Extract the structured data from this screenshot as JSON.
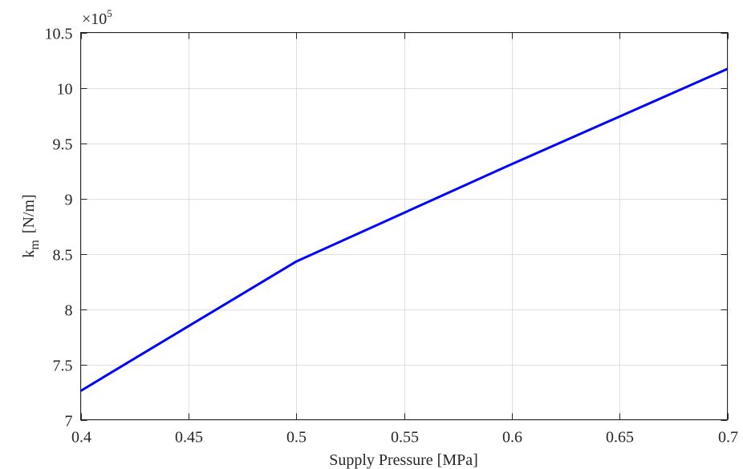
{
  "chart_data": {
    "type": "line",
    "xlabel": "Supply Pressure [MPa]",
    "ylabel_main": "k",
    "ylabel_sub": "m",
    "ylabel_unit": "[N/m]",
    "y_exponent_base": "×10",
    "y_exponent_power": "5",
    "xlim": [
      0.4,
      0.7
    ],
    "ylim": [
      7,
      10.5
    ],
    "x_ticks": [
      0.4,
      0.45,
      0.5,
      0.55,
      0.6,
      0.65,
      0.7
    ],
    "x_tick_labels": [
      "0.4",
      "0.45",
      "0.5",
      "0.55",
      "0.6",
      "0.65",
      "0.7"
    ],
    "y_ticks": [
      7,
      7.5,
      8,
      8.5,
      9,
      9.5,
      10,
      10.5
    ],
    "y_tick_labels": [
      "7",
      "7.5",
      "8",
      "8.5",
      "9",
      "9.5",
      "10",
      "10.5"
    ],
    "grid": true,
    "series": [
      {
        "color": "#0000ff",
        "x": [
          0.4,
          0.5,
          0.6,
          0.7
        ],
        "y": [
          7.26,
          8.43,
          9.31,
          10.17
        ]
      }
    ]
  }
}
